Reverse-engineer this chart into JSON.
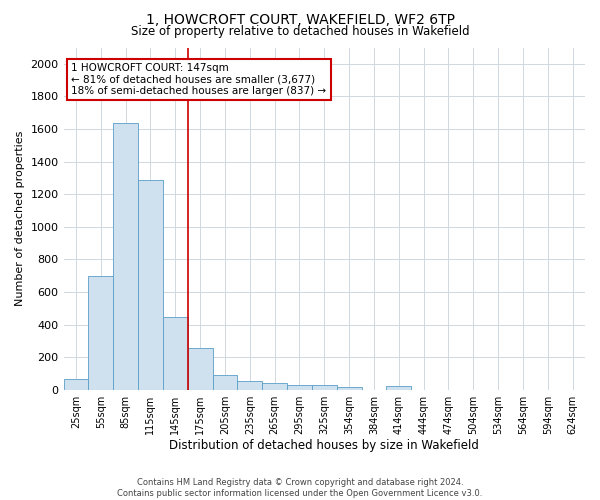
{
  "title1": "1, HOWCROFT COURT, WAKEFIELD, WF2 6TP",
  "title2": "Size of property relative to detached houses in Wakefield",
  "xlabel": "Distribution of detached houses by size in Wakefield",
  "ylabel": "Number of detached properties",
  "bar_color": "#cfe0ee",
  "bar_edge_color": "#5a9ec8",
  "vline_color": "#cc0000",
  "vline_x_index": 4,
  "annotation_text": "1 HOWCROFT COURT: 147sqm\n← 81% of detached houses are smaller (3,677)\n18% of semi-detached houses are larger (837) →",
  "annotation_box_color": "#ffffff",
  "annotation_edge_color": "#cc0000",
  "categories": [
    "25sqm",
    "55sqm",
    "85sqm",
    "115sqm",
    "145sqm",
    "175sqm",
    "205sqm",
    "235sqm",
    "265sqm",
    "295sqm",
    "325sqm",
    "354sqm",
    "384sqm",
    "414sqm",
    "444sqm",
    "474sqm",
    "504sqm",
    "534sqm",
    "564sqm",
    "594sqm",
    "624sqm"
  ],
  "values": [
    65,
    695,
    1635,
    1285,
    445,
    255,
    90,
    55,
    40,
    30,
    30,
    15,
    0,
    20,
    0,
    0,
    0,
    0,
    0,
    0,
    0
  ],
  "ylim": [
    0,
    2100
  ],
  "yticks": [
    0,
    200,
    400,
    600,
    800,
    1000,
    1200,
    1400,
    1600,
    1800,
    2000
  ],
  "footnote1": "Contains HM Land Registry data © Crown copyright and database right 2024.",
  "footnote2": "Contains public sector information licensed under the Open Government Licence v3.0.",
  "background_color": "#ffffff",
  "grid_color": "#d0d8e0"
}
